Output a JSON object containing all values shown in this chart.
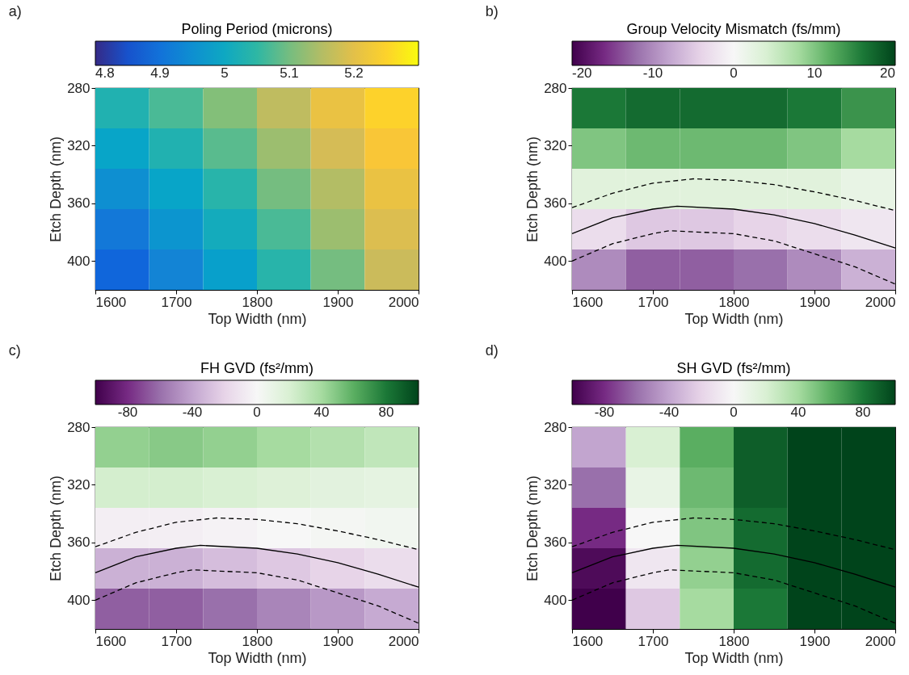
{
  "chart_data": [
    {
      "type": "heatmap",
      "title": "a)",
      "clabel": "Poling Period (microns)",
      "xlabel": "Top Width (nm)",
      "ylabel": "Etch Depth (nm)",
      "xlim": [
        1600,
        2000
      ],
      "xticks": [
        1600,
        1700,
        1800,
        1900,
        2000
      ],
      "ylim": [
        420,
        280
      ],
      "yticks": [
        280,
        320,
        360,
        400
      ],
      "clim": [
        4.8,
        5.3
      ],
      "cticks": [
        4.8,
        4.9,
        5,
        5.1,
        5.2
      ],
      "colors": [
        "#352a87",
        "#0f5cdd",
        "#1481d6",
        "#06a4ca",
        "#2eb7a4",
        "#87bf77",
        "#d1bb59",
        "#fec832",
        "#f9fb0e"
      ],
      "cells": [
        [
          5.03,
          5.07,
          5.11,
          5.16,
          5.21,
          5.25
        ],
        [
          4.99,
          5.03,
          5.08,
          5.13,
          5.18,
          5.23
        ],
        [
          4.95,
          4.99,
          5.04,
          5.1,
          5.15,
          5.21
        ],
        [
          4.91,
          4.96,
          5.01,
          5.07,
          5.13,
          5.19
        ],
        [
          4.88,
          4.93,
          4.98,
          5.04,
          5.1,
          5.17
        ]
      ]
    },
    {
      "type": "heatmap",
      "title": "b)",
      "clabel": "Group Velocity Mismatch (fs/mm)",
      "xlabel": "Top Width (nm)",
      "ylabel": "Etch Depth (nm)",
      "xlim": [
        1600,
        2000
      ],
      "xticks": [
        1600,
        1700,
        1800,
        1900,
        2000
      ],
      "ylim": [
        420,
        280
      ],
      "yticks": [
        280,
        320,
        360,
        400
      ],
      "clim": [
        -20,
        20
      ],
      "cticks": [
        -20,
        -10,
        0,
        10,
        20
      ],
      "colors": [
        "#40004b",
        "#762a83",
        "#9970ab",
        "#c2a5cf",
        "#e7d4e8",
        "#f7f7f7",
        "#d9f0d3",
        "#a6dba0",
        "#5aae61",
        "#1b7837",
        "#00441b"
      ],
      "cells": [
        [
          16,
          17,
          17,
          17,
          16,
          14
        ],
        [
          10,
          11,
          11,
          11,
          10,
          8
        ],
        [
          3,
          3,
          3,
          3,
          3,
          2
        ],
        [
          -3,
          -5,
          -5,
          -4,
          -3,
          -2
        ],
        [
          -10,
          -13,
          -13,
          -12,
          -10,
          -7
        ]
      ],
      "series": [
        {
          "type": "line",
          "color": "#000000",
          "line_style": "dashed",
          "x": [
            1600,
            1650,
            1700,
            1750,
            1800,
            1850,
            1900,
            1950,
            2000
          ],
          "values": [
            363,
            353,
            346,
            343,
            344,
            347,
            352,
            358,
            365
          ]
        },
        {
          "type": "line",
          "color": "#000000",
          "line_style": "solid",
          "x": [
            1600,
            1650,
            1700,
            1730,
            1800,
            1850,
            1900,
            1950,
            2000
          ],
          "values": [
            381,
            370,
            364,
            362,
            364,
            368,
            374,
            382,
            391
          ]
        },
        {
          "type": "line",
          "color": "#000000",
          "line_style": "dashed",
          "x": [
            1600,
            1650,
            1700,
            1720,
            1800,
            1850,
            1900,
            1950,
            2000
          ],
          "values": [
            400,
            388,
            381,
            379,
            381,
            386,
            395,
            404,
            416
          ]
        }
      ]
    },
    {
      "type": "heatmap",
      "title": "c)",
      "clabel": "FH GVD (fs²/mm)",
      "xlabel": "Top Width (nm)",
      "ylabel": "Etch Depth (nm)",
      "xlim": [
        1600,
        2000
      ],
      "xticks": [
        1600,
        1700,
        1800,
        1900,
        2000
      ],
      "ylim": [
        420,
        280
      ],
      "yticks": [
        280,
        320,
        360,
        400
      ],
      "clim": [
        -100,
        100
      ],
      "cticks": [
        -80,
        -40,
        0,
        40,
        80
      ],
      "colors": [
        "#40004b",
        "#762a83",
        "#9970ab",
        "#c2a5cf",
        "#e7d4e8",
        "#f7f7f7",
        "#d9f0d3",
        "#a6dba0",
        "#5aae61",
        "#1b7837",
        "#00441b"
      ],
      "cells": [
        [
          45,
          48,
          45,
          40,
          35,
          30
        ],
        [
          22,
          22,
          20,
          17,
          14,
          12
        ],
        [
          -5,
          -5,
          -3,
          0,
          2,
          4
        ],
        [
          -35,
          -35,
          -30,
          -25,
          -20,
          -15
        ],
        [
          -65,
          -65,
          -60,
          -52,
          -45,
          -38
        ]
      ],
      "series": [
        {
          "type": "line",
          "color": "#000000",
          "line_style": "dashed",
          "x": [
            1600,
            1650,
            1700,
            1750,
            1800,
            1850,
            1900,
            1950,
            2000
          ],
          "values": [
            363,
            353,
            346,
            343,
            344,
            347,
            352,
            358,
            365
          ]
        },
        {
          "type": "line",
          "color": "#000000",
          "line_style": "solid",
          "x": [
            1600,
            1650,
            1700,
            1730,
            1800,
            1850,
            1900,
            1950,
            2000
          ],
          "values": [
            381,
            370,
            364,
            362,
            364,
            368,
            374,
            382,
            391
          ]
        },
        {
          "type": "line",
          "color": "#000000",
          "line_style": "dashed",
          "x": [
            1600,
            1650,
            1700,
            1720,
            1800,
            1850,
            1900,
            1950,
            2000
          ],
          "values": [
            400,
            388,
            381,
            379,
            381,
            386,
            395,
            404,
            416
          ]
        }
      ]
    },
    {
      "type": "heatmap",
      "title": "d)",
      "clabel": "SH GVD (fs²/mm)",
      "xlabel": "Top Width (nm)",
      "ylabel": "Etch Depth (nm)",
      "xlim": [
        1600,
        2000
      ],
      "xticks": [
        1600,
        1700,
        1800,
        1900,
        2000
      ],
      "ylim": [
        420,
        280
      ],
      "yticks": [
        280,
        320,
        360,
        400
      ],
      "clim": [
        -100,
        100
      ],
      "cticks": [
        -80,
        -40,
        0,
        40,
        80
      ],
      "colors": [
        "#40004b",
        "#762a83",
        "#9970ab",
        "#c2a5cf",
        "#e7d4e8",
        "#f7f7f7",
        "#d9f0d3",
        "#a6dba0",
        "#5aae61",
        "#1b7837",
        "#00441b"
      ],
      "cells": [
        [
          -40,
          20,
          60,
          90,
          100,
          100
        ],
        [
          -60,
          10,
          55,
          90,
          100,
          100
        ],
        [
          -80,
          0,
          50,
          85,
          100,
          100
        ],
        [
          -95,
          -10,
          45,
          85,
          100,
          100
        ],
        [
          -100,
          -25,
          40,
          80,
          100,
          100
        ]
      ],
      "series": [
        {
          "type": "line",
          "color": "#000000",
          "line_style": "dashed",
          "x": [
            1600,
            1650,
            1700,
            1750,
            1800,
            1850,
            1900,
            1950,
            2000
          ],
          "values": [
            363,
            353,
            346,
            343,
            344,
            347,
            352,
            358,
            365
          ]
        },
        {
          "type": "line",
          "color": "#000000",
          "line_style": "solid",
          "x": [
            1600,
            1650,
            1700,
            1730,
            1800,
            1850,
            1900,
            1950,
            2000
          ],
          "values": [
            381,
            370,
            364,
            362,
            364,
            368,
            374,
            382,
            391
          ]
        },
        {
          "type": "line",
          "color": "#000000",
          "line_style": "dashed",
          "x": [
            1600,
            1650,
            1700,
            1720,
            1800,
            1850,
            1900,
            1950,
            2000
          ],
          "values": [
            400,
            388,
            381,
            379,
            381,
            386,
            395,
            404,
            416
          ]
        }
      ]
    }
  ]
}
